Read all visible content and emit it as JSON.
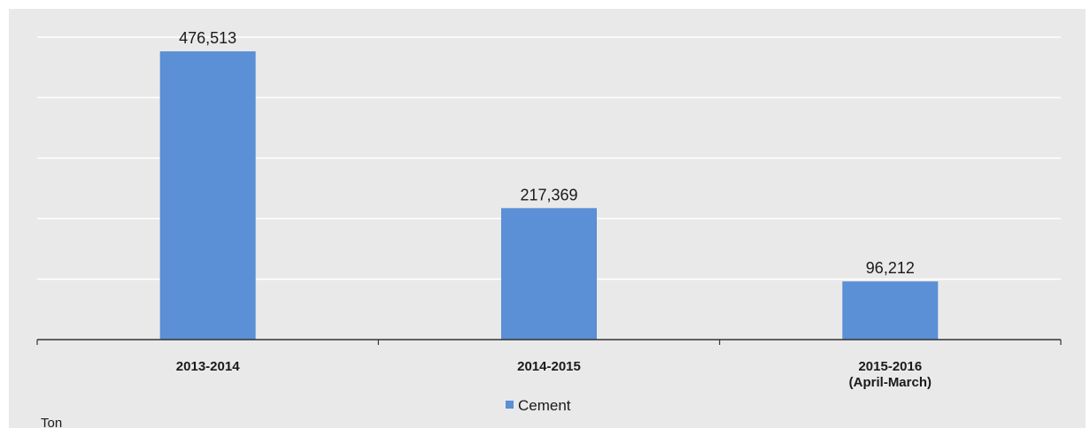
{
  "chart_data": {
    "type": "bar",
    "categories": [
      [
        "2013-2014"
      ],
      [
        "2014-2015"
      ],
      [
        "2015-2016",
        "(April-March)"
      ]
    ],
    "series": [
      {
        "name": "Cement",
        "values": [
          476513,
          217369,
          96212
        ],
        "value_labels": [
          "476,513",
          "217,369",
          "96,212"
        ],
        "color": "#5b8fd6"
      }
    ],
    "ylim": [
      0,
      500000
    ],
    "grid": true,
    "legend_position": "bottom-center",
    "unit_label": "Ton"
  },
  "colors": {
    "plot_background": "#e9e9e9",
    "gridline": "#ffffff",
    "axis": "#333333",
    "bar": "#5b8fd6",
    "bar_top": "#5a85dc"
  }
}
